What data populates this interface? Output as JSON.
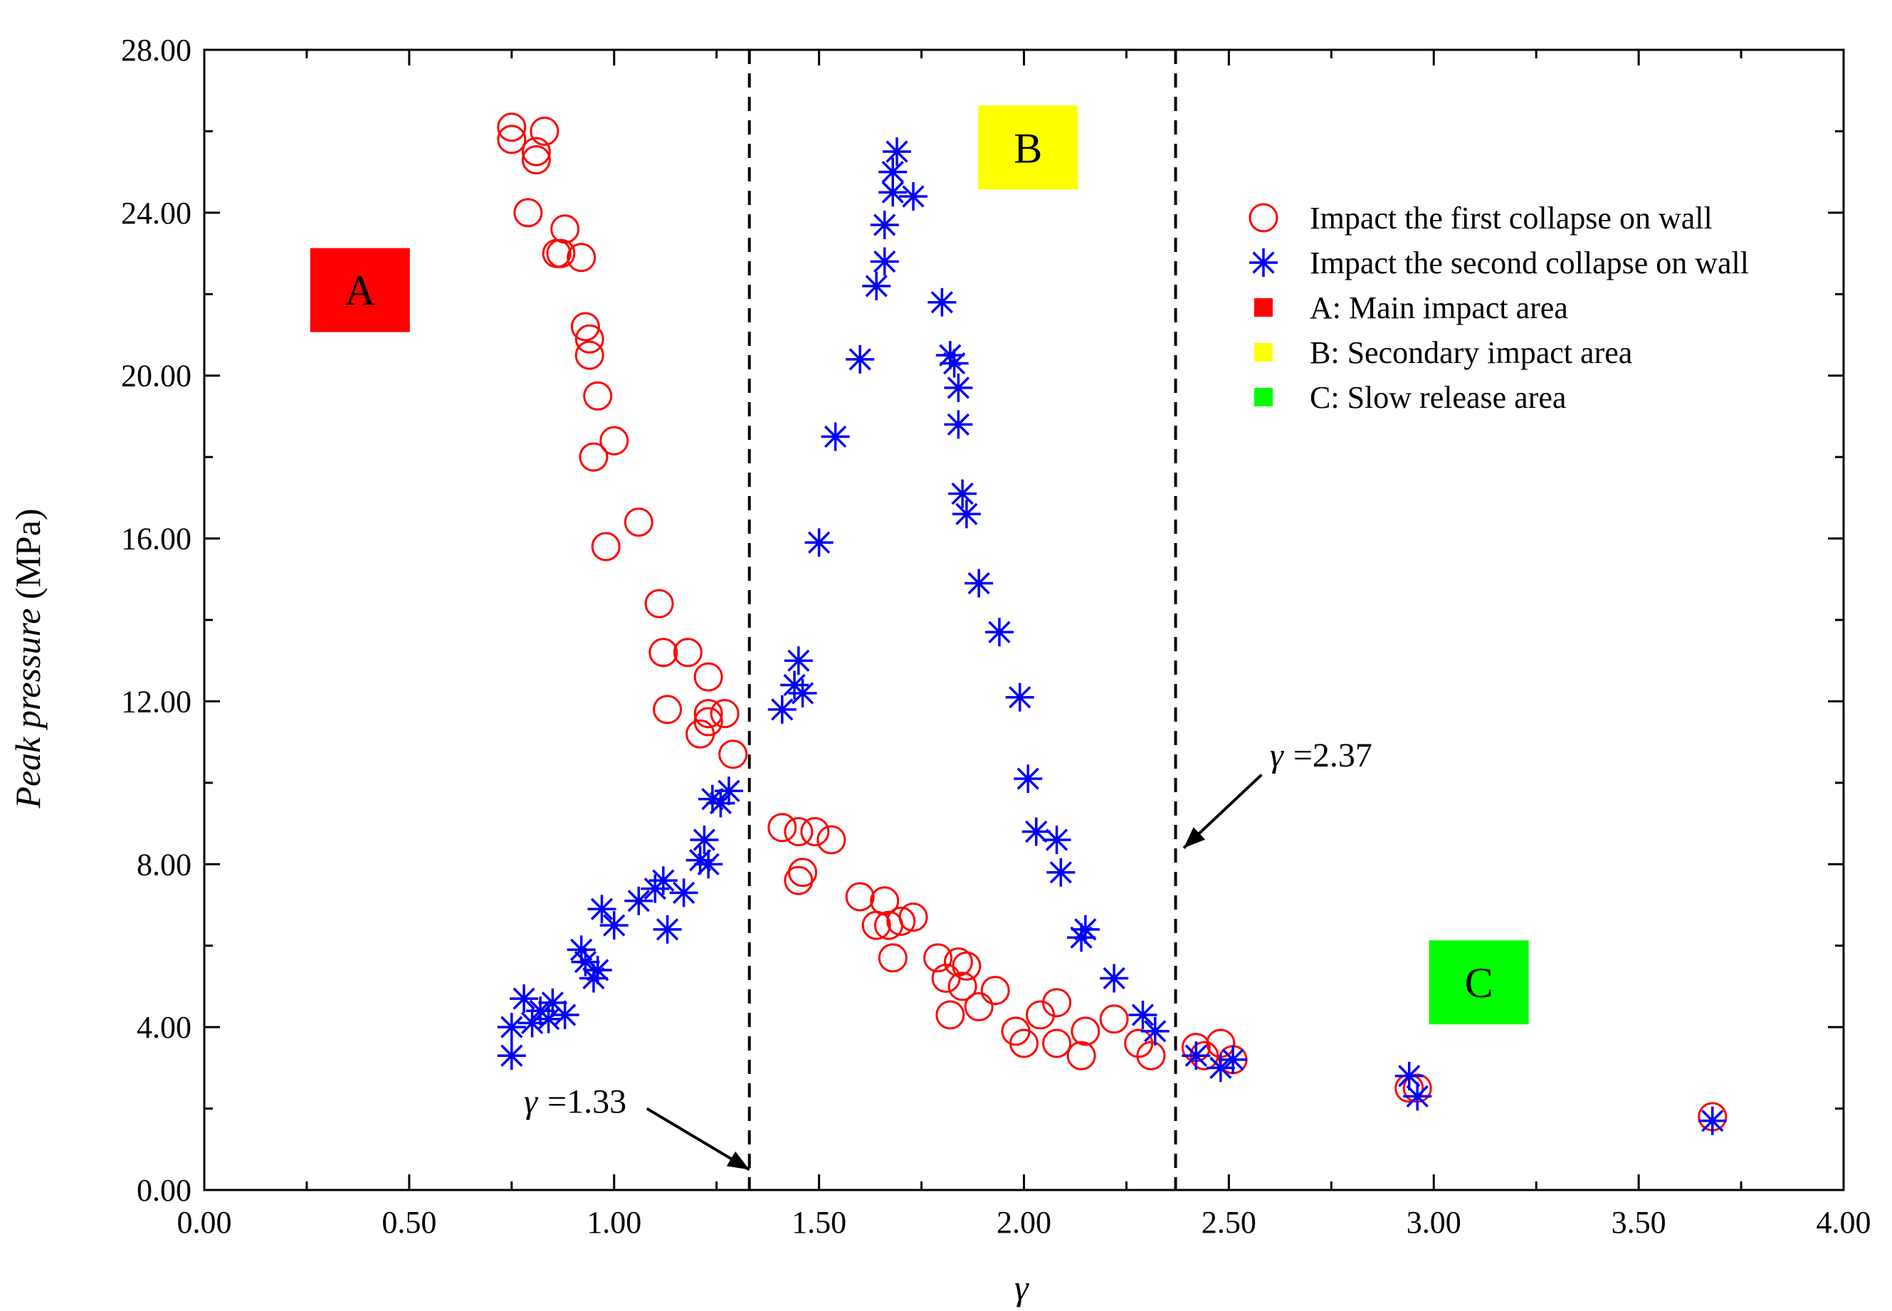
{
  "chart_data": {
    "type": "scatter",
    "xlabel": "γ",
    "ylabel_italic": "Peak pressure",
    "ylabel_unit": " (MPa)",
    "xlim": [
      0,
      4
    ],
    "ylim": [
      0,
      28
    ],
    "x_ticks": [
      "0.00",
      "0.50",
      "1.00",
      "1.50",
      "2.00",
      "2.50",
      "3.00",
      "3.50",
      "4.00"
    ],
    "y_ticks": [
      "0.00",
      "4.00",
      "8.00",
      "12.00",
      "16.00",
      "20.00",
      "24.00",
      "28.00"
    ],
    "thresholds": [
      1.33,
      2.37
    ],
    "annotations": [
      {
        "symbol": "γ",
        "text": "=1.33",
        "x": 1.33,
        "label_x": 0.78,
        "label_y": 1.9,
        "arrow_from": [
          1.08,
          2.0
        ],
        "arrow_to": [
          1.33,
          0.5
        ]
      },
      {
        "symbol": "γ",
        "text": "=2.37",
        "x": 2.37,
        "label_x": 2.6,
        "label_y": 10.4,
        "arrow_from": [
          2.58,
          10.2
        ],
        "arrow_to": [
          2.39,
          8.4
        ]
      }
    ],
    "regions": [
      {
        "label": "A",
        "color": "#ff0000",
        "x": 0.38,
        "y": 22.1
      },
      {
        "label": "B",
        "color": "#ffff00",
        "x": 2.01,
        "y": 25.6
      },
      {
        "label": "C",
        "color": "#00ff00",
        "x": 3.11,
        "y": 5.1
      }
    ],
    "legend": [
      {
        "marker": "circle",
        "color": "#ff0000",
        "label": "Impact the first collapse on wall"
      },
      {
        "marker": "star",
        "color": "#0000ff",
        "label": "Impact the second collapse on wall"
      },
      {
        "marker": "square",
        "color": "#ff0000",
        "label": "A: Main impact area"
      },
      {
        "marker": "square",
        "color": "#ffff00",
        "label": "B: Secondary impact area"
      },
      {
        "marker": "square",
        "color": "#00ff00",
        "label": "C: Slow release area"
      }
    ],
    "series": [
      {
        "name": "Impact the first collapse on wall",
        "marker": "circle",
        "color": "#ff0000",
        "points": [
          [
            0.75,
            25.8
          ],
          [
            0.75,
            26.1
          ],
          [
            0.81,
            25.3
          ],
          [
            0.81,
            25.5
          ],
          [
            0.83,
            26.0
          ],
          [
            0.79,
            24.0
          ],
          [
            0.88,
            23.6
          ],
          [
            0.87,
            23.0
          ],
          [
            0.86,
            23.0
          ],
          [
            0.92,
            22.9
          ],
          [
            0.93,
            21.2
          ],
          [
            0.94,
            20.9
          ],
          [
            0.94,
            20.5
          ],
          [
            0.96,
            19.5
          ],
          [
            0.95,
            18.0
          ],
          [
            1.0,
            18.4
          ],
          [
            1.06,
            16.4
          ],
          [
            0.98,
            15.8
          ],
          [
            1.11,
            14.4
          ],
          [
            1.12,
            13.2
          ],
          [
            1.18,
            13.2
          ],
          [
            1.13,
            11.8
          ],
          [
            1.23,
            12.6
          ],
          [
            1.23,
            11.7
          ],
          [
            1.27,
            11.7
          ],
          [
            1.21,
            11.2
          ],
          [
            1.23,
            11.5
          ],
          [
            1.29,
            10.7
          ],
          [
            1.41,
            8.9
          ],
          [
            1.45,
            8.8
          ],
          [
            1.49,
            8.8
          ],
          [
            1.53,
            8.6
          ],
          [
            1.46,
            7.8
          ],
          [
            1.45,
            7.6
          ],
          [
            1.6,
            7.2
          ],
          [
            1.66,
            7.1
          ],
          [
            1.64,
            6.5
          ],
          [
            1.67,
            6.5
          ],
          [
            1.7,
            6.6
          ],
          [
            1.73,
            6.7
          ],
          [
            1.68,
            5.7
          ],
          [
            1.79,
            5.7
          ],
          [
            1.81,
            5.2
          ],
          [
            1.84,
            5.6
          ],
          [
            1.85,
            5.0
          ],
          [
            1.86,
            5.5
          ],
          [
            1.82,
            4.3
          ],
          [
            1.93,
            4.9
          ],
          [
            1.89,
            4.5
          ],
          [
            2.04,
            4.3
          ],
          [
            2.08,
            4.6
          ],
          [
            1.98,
            3.9
          ],
          [
            2.0,
            3.6
          ],
          [
            2.08,
            3.6
          ],
          [
            2.14,
            3.3
          ],
          [
            2.15,
            3.9
          ],
          [
            2.22,
            4.2
          ],
          [
            2.28,
            3.6
          ],
          [
            2.31,
            3.3
          ],
          [
            2.42,
            3.5
          ],
          [
            2.44,
            3.3
          ],
          [
            2.48,
            3.6
          ],
          [
            2.51,
            3.2
          ],
          [
            2.94,
            2.5
          ],
          [
            2.96,
            2.5
          ],
          [
            3.68,
            1.8
          ]
        ]
      },
      {
        "name": "Impact the second collapse on wall",
        "marker": "star",
        "color": "#0000ff",
        "points": [
          [
            0.75,
            3.3
          ],
          [
            0.75,
            4.0
          ],
          [
            0.78,
            4.7
          ],
          [
            0.8,
            4.1
          ],
          [
            0.82,
            4.4
          ],
          [
            0.84,
            4.2
          ],
          [
            0.85,
            4.6
          ],
          [
            0.88,
            4.3
          ],
          [
            0.92,
            5.9
          ],
          [
            0.93,
            5.6
          ],
          [
            0.95,
            5.2
          ],
          [
            0.96,
            5.4
          ],
          [
            0.97,
            6.9
          ],
          [
            1.0,
            6.5
          ],
          [
            1.06,
            7.1
          ],
          [
            1.1,
            7.4
          ],
          [
            1.12,
            7.6
          ],
          [
            1.13,
            6.4
          ],
          [
            1.17,
            7.3
          ],
          [
            1.21,
            8.1
          ],
          [
            1.22,
            8.6
          ],
          [
            1.23,
            8.0
          ],
          [
            1.24,
            9.6
          ],
          [
            1.26,
            9.5
          ],
          [
            1.28,
            9.8
          ],
          [
            1.41,
            11.8
          ],
          [
            1.44,
            12.4
          ],
          [
            1.45,
            13.0
          ],
          [
            1.46,
            12.2
          ],
          [
            1.5,
            15.9
          ],
          [
            1.54,
            18.5
          ],
          [
            1.6,
            20.4
          ],
          [
            1.64,
            22.2
          ],
          [
            1.66,
            22.8
          ],
          [
            1.66,
            23.7
          ],
          [
            1.68,
            24.5
          ],
          [
            1.68,
            25.0
          ],
          [
            1.69,
            25.5
          ],
          [
            1.73,
            24.4
          ],
          [
            1.8,
            21.8
          ],
          [
            1.82,
            20.5
          ],
          [
            1.83,
            20.3
          ],
          [
            1.84,
            19.7
          ],
          [
            1.84,
            18.8
          ],
          [
            1.85,
            17.1
          ],
          [
            1.86,
            16.6
          ],
          [
            1.89,
            14.9
          ],
          [
            1.94,
            13.7
          ],
          [
            1.99,
            12.1
          ],
          [
            2.01,
            10.1
          ],
          [
            2.03,
            8.8
          ],
          [
            2.08,
            8.6
          ],
          [
            2.09,
            7.8
          ],
          [
            2.14,
            6.2
          ],
          [
            2.15,
            6.4
          ],
          [
            2.22,
            5.2
          ],
          [
            2.29,
            4.3
          ],
          [
            2.32,
            3.9
          ],
          [
            2.42,
            3.3
          ],
          [
            2.48,
            3.0
          ],
          [
            2.51,
            3.2
          ],
          [
            2.94,
            2.8
          ],
          [
            2.96,
            2.3
          ],
          [
            3.68,
            1.7
          ]
        ]
      }
    ]
  }
}
